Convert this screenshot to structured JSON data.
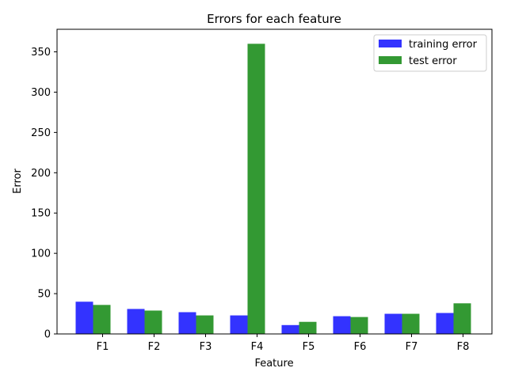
{
  "chart_data": {
    "type": "bar",
    "title": "Errors for each feature",
    "xlabel": "Feature",
    "ylabel": "Error",
    "categories": [
      "F1",
      "F2",
      "F3",
      "F4",
      "F5",
      "F6",
      "F7",
      "F8"
    ],
    "series": [
      {
        "name": "training error",
        "color": "#3333ff",
        "values": [
          40,
          31,
          27,
          23,
          11,
          22,
          25,
          26
        ]
      },
      {
        "name": "test error",
        "color": "#339933",
        "values": [
          36,
          29,
          23,
          360,
          15,
          21,
          25,
          38
        ]
      }
    ],
    "ylim": [
      0,
      378
    ],
    "yticks": [
      0,
      50,
      100,
      150,
      200,
      250,
      300,
      350
    ],
    "grid": false,
    "legend_position": "top-right"
  }
}
